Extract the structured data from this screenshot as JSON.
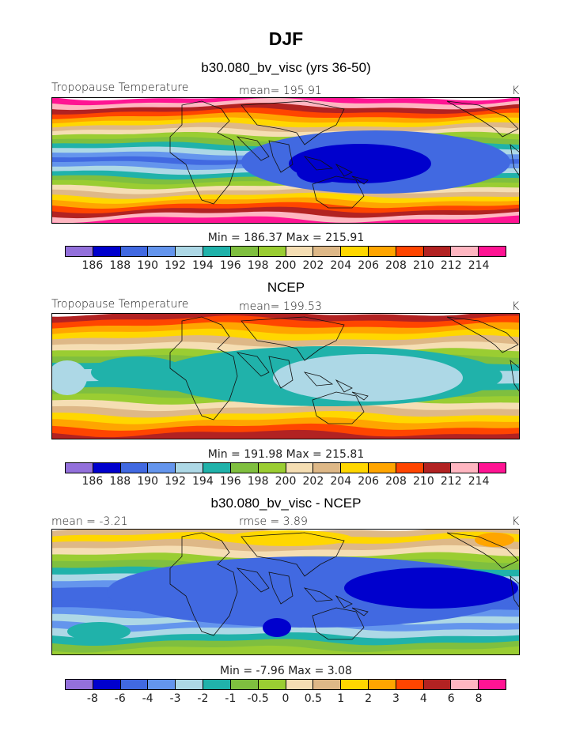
{
  "title": "DJF",
  "palette": [
    "#9370db",
    "#0000cd",
    "#4169e1",
    "#6495ed",
    "#add8e6",
    "#20b2aa",
    "#7fbf3f",
    "#9acd32",
    "#f5deb3",
    "#deb887",
    "#ffd700",
    "#ffa500",
    "#ff4500",
    "#b22222",
    "#ffb6c1",
    "#ff1493"
  ],
  "chart_data": [
    {
      "type": "heatmap",
      "subtitle": "b30.080_bv_visc (yrs 36-50)",
      "variable_label": "Tropopause Temperature",
      "stat_label": "mean= 195.91",
      "units": "K",
      "minmax_label": "Min = 186.37 Max = 215.91",
      "min": 186.37,
      "max": 215.91,
      "mean": 195.91,
      "levels": [
        "186",
        "188",
        "190",
        "192",
        "194",
        "196",
        "198",
        "200",
        "202",
        "204",
        "206",
        "208",
        "210",
        "212",
        "214"
      ],
      "bands_from_north": [
        15,
        14,
        13,
        12,
        11,
        10,
        9,
        8,
        7,
        6,
        5,
        4,
        3,
        2,
        3,
        4,
        5,
        6,
        7,
        8,
        9,
        10,
        11,
        12,
        13,
        14,
        15
      ]
    },
    {
      "type": "heatmap",
      "subtitle": "NCEP",
      "variable_label": "Tropopause Temperature",
      "stat_label": "mean= 199.53",
      "units": "K",
      "minmax_label": "Min = 191.98 Max = 215.81",
      "min": 191.98,
      "max": 215.81,
      "mean": 199.53,
      "levels": [
        "186",
        "188",
        "190",
        "192",
        "194",
        "196",
        "198",
        "200",
        "202",
        "204",
        "206",
        "208",
        "210",
        "212",
        "214"
      ],
      "bands_from_north": [
        13,
        12,
        11,
        10,
        9,
        8,
        7,
        6,
        5,
        4,
        4,
        5,
        6,
        7,
        8,
        9,
        10,
        11,
        12,
        13
      ]
    },
    {
      "type": "heatmap",
      "subtitle": "b30.080_bv_visc - NCEP",
      "variable_label": "mean =  -3.21",
      "stat_label": "rmse =     3.89",
      "units": "K",
      "minmax_label": "Min =   -7.96 Max =     3.08",
      "min": -7.96,
      "max": 3.08,
      "mean": -3.21,
      "rmse": 3.89,
      "levels": [
        "-8",
        "-6",
        "-4",
        "-3",
        "-2",
        "-1",
        "-0.5",
        "0",
        "0.5",
        "1",
        "2",
        "3",
        "4",
        "6",
        "8"
      ],
      "bands_from_north": [
        9,
        10,
        9,
        8,
        7,
        6,
        5,
        4,
        3,
        2,
        2,
        2,
        3,
        4,
        3,
        4,
        5,
        6,
        7
      ]
    }
  ]
}
